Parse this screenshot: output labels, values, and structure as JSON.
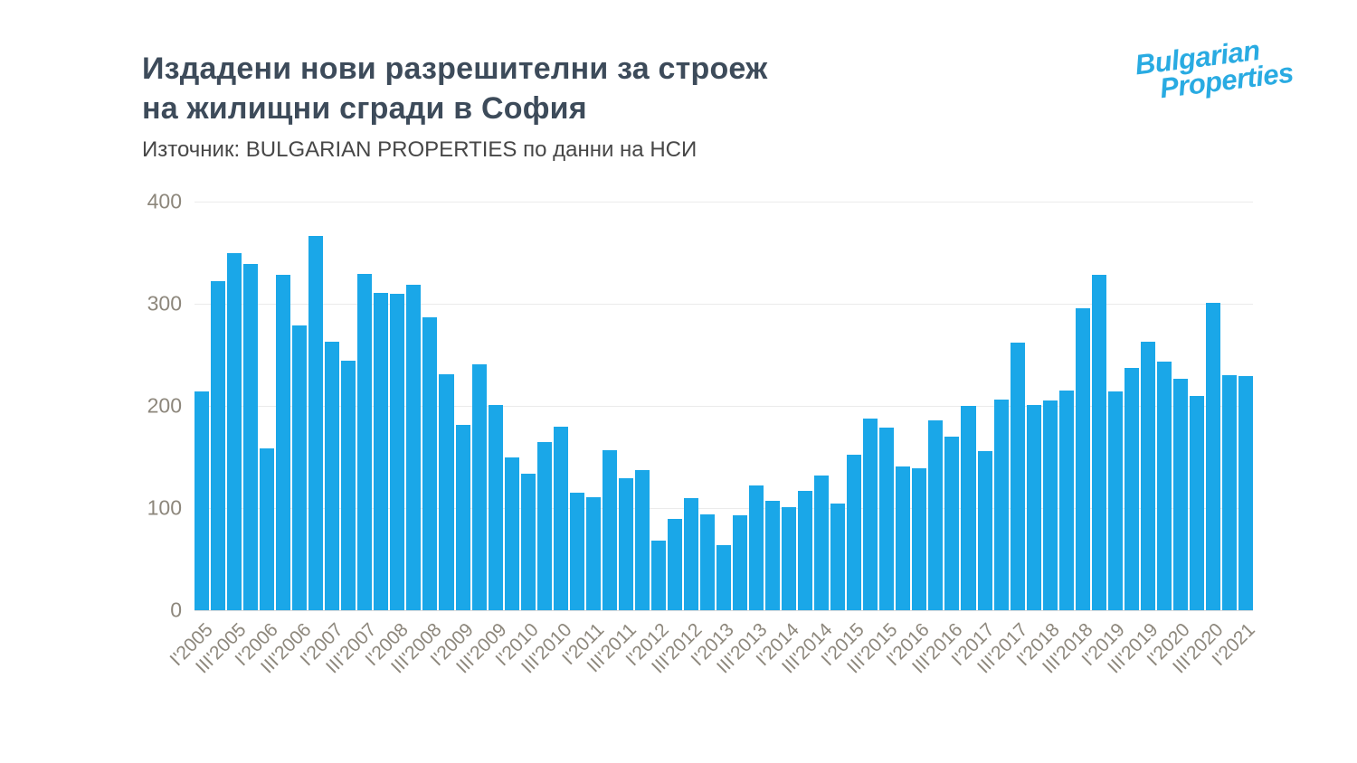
{
  "header": {
    "title_line1": "Издадени нови разрешителни за строеж",
    "title_line2": "на жилищни сгради в София",
    "source": "Източник: BULGARIAN PROPERTIES по данни на НСИ",
    "title_color": "#3d4b5a"
  },
  "logo": {
    "line1": "Bulgarian",
    "line2": "Properties",
    "color": "#29abe2"
  },
  "chart_data": {
    "type": "bar",
    "title": "Издадени нови разрешителни за строеж на жилищни сгради в София",
    "xlabel": "",
    "ylabel": "",
    "ylim": [
      0,
      400
    ],
    "yticks": [
      0,
      100,
      200,
      300,
      400
    ],
    "grid": true,
    "bar_color": "#1aa7e8",
    "categories": [
      "I'2005",
      "II'2005",
      "III'2005",
      "IV'2005",
      "I'2006",
      "II'2006",
      "III'2006",
      "IV'2006",
      "I'2007",
      "II'2007",
      "III'2007",
      "IV'2007",
      "I'2008",
      "II'2008",
      "III'2008",
      "IV'2008",
      "I'2009",
      "II'2009",
      "III'2009",
      "IV'2009",
      "I'2010",
      "II'2010",
      "III'2010",
      "IV'2010",
      "I'2011",
      "II'2011",
      "III'2011",
      "IV'2011",
      "I'2012",
      "II'2012",
      "III'2012",
      "IV'2012",
      "I'2013",
      "II'2013",
      "III'2013",
      "IV'2013",
      "I'2014",
      "II'2014",
      "III'2014",
      "IV'2014",
      "I'2015",
      "II'2015",
      "III'2015",
      "IV'2015",
      "I'2016",
      "II'2016",
      "III'2016",
      "IV'2016",
      "I'2017",
      "II'2017",
      "III'2017",
      "IV'2017",
      "I'2018",
      "II'2018",
      "III'2018",
      "IV'2018",
      "I'2019",
      "II'2019",
      "III'2019",
      "IV'2019",
      "I'2020",
      "II'2020",
      "III'2020",
      "IV'2020",
      "I'2021"
    ],
    "values": [
      214,
      322,
      350,
      339,
      158,
      328,
      279,
      366,
      263,
      244,
      329,
      311,
      310,
      319,
      287,
      231,
      181,
      241,
      201,
      150,
      134,
      165,
      180,
      115,
      111,
      157,
      129,
      137,
      68,
      89,
      110,
      94,
      64,
      93,
      122,
      107,
      101,
      117,
      132,
      104,
      152,
      188,
      179,
      141,
      139,
      186,
      170,
      200,
      156,
      206,
      262,
      201,
      205,
      215,
      296,
      328,
      214,
      237,
      263,
      243,
      227,
      210,
      301,
      230,
      229
    ],
    "tick_labels": [
      "I'2005",
      "III'2005",
      "I'2006",
      "III'2006",
      "I'2007",
      "III'2007",
      "I'2008",
      "III'2008",
      "I'2009",
      "III'2009",
      "I'2010",
      "III'2010",
      "I'2011",
      "III'2011",
      "I'2012",
      "III'2012",
      "I'2013",
      "III'2013",
      "I'2014",
      "III'2014",
      "I'2015",
      "III'2015",
      "I'2016",
      "III'2016",
      "I'2017",
      "III'2017",
      "I'2018",
      "III'2018",
      "I'2019",
      "III'2019",
      "I'2020",
      "III'2020",
      "I'2021"
    ],
    "legend": null
  }
}
